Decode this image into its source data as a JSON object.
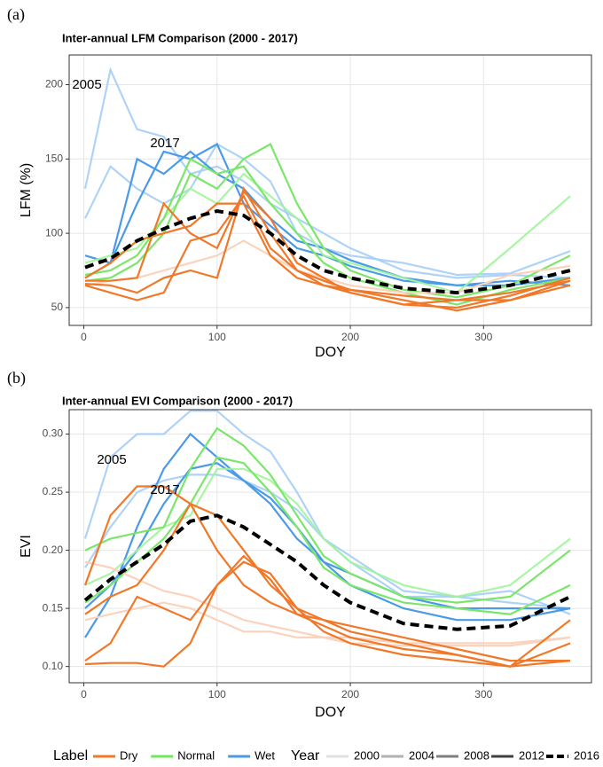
{
  "panels": [
    {
      "panel_label": "(a)",
      "chart_data": {
        "type": "line",
        "title": "Inter-annual LFM Comparison (2000 - 2017)",
        "x_label": "DOY",
        "y_label": "LFM (%)",
        "x": [
          1,
          20,
          40,
          60,
          80,
          100,
          120,
          140,
          160,
          180,
          200,
          240,
          280,
          320,
          365
        ],
        "xlim": [
          -11,
          381
        ],
        "xticks": [
          0,
          100,
          200,
          300
        ],
        "ylim": [
          38,
          220
        ],
        "yticks": [
          50,
          100,
          150,
          200
        ],
        "grid": true,
        "annotations": [
          "2005",
          "2017"
        ],
        "series": [
          {
            "color": "#a6cef5",
            "opacity": 0.9,
            "values": [
              130,
              210,
              170,
              165,
              140,
              145,
              135,
              120,
              110,
              100,
              90,
              75,
              70,
              72,
              70
            ]
          },
          {
            "color": "#a6cef5",
            "opacity": 0.9,
            "values": [
              110,
              145,
              130,
              120,
              130,
              160,
              150,
              135,
              100,
              90,
              85,
              80,
              72,
              73,
              88
            ]
          },
          {
            "color": "#4a9ae8",
            "opacity": 1,
            "values": [
              85,
              80,
              150,
              140,
              155,
              140,
              130,
              110,
              95,
              90,
              82,
              70,
              65,
              65,
              70
            ]
          },
          {
            "color": "#4a9ae8",
            "opacity": 1,
            "values": [
              70,
              80,
              120,
              155,
              150,
              160,
              120,
              105,
              90,
              85,
              78,
              68,
              65,
              68,
              65
            ]
          },
          {
            "color": "#9ef59a",
            "opacity": 0.9,
            "values": [
              80,
              85,
              90,
              110,
              130,
              120,
              140,
              125,
              110,
              85,
              80,
              70,
              60,
              90,
              125
            ]
          },
          {
            "color": "#7ae66a",
            "opacity": 1,
            "values": [
              68,
              70,
              80,
              100,
              140,
              130,
              150,
              160,
              120,
              90,
              75,
              62,
              57,
              65,
              85
            ]
          },
          {
            "color": "#7ae66a",
            "opacity": 1,
            "values": [
              72,
              75,
              85,
              110,
              150,
              140,
              145,
              120,
              100,
              80,
              70,
              60,
              52,
              62,
              70
            ]
          },
          {
            "color": "#fbd3bd",
            "opacity": 1,
            "values": [
              65,
              68,
              70,
              75,
              80,
              85,
              95,
              85,
              75,
              70,
              65,
              60,
              60,
              72,
              78
            ]
          },
          {
            "color": "#f07828",
            "opacity": 1,
            "values": [
              68,
              68,
              70,
              120,
              100,
              90,
              128,
              110,
              80,
              70,
              60,
              52,
              50,
              58,
              70
            ]
          },
          {
            "color": "#f07828",
            "opacity": 1,
            "values": [
              65,
              60,
              55,
              60,
              95,
              100,
              125,
              90,
              75,
              65,
              62,
              55,
              48,
              55,
              68
            ]
          },
          {
            "color": "#f07828",
            "opacity": 1,
            "values": [
              70,
              80,
              95,
              100,
              105,
              120,
              120,
              85,
              70,
              65,
              60,
              52,
              55,
              55,
              65
            ]
          },
          {
            "color": "#f07828",
            "opacity": 1,
            "values": [
              66,
              65,
              60,
              70,
              75,
              70,
              130,
              100,
              75,
              68,
              62,
              58,
              55,
              60,
              68
            ]
          },
          {
            "color": "#000000",
            "opacity": 1,
            "dashed": true,
            "values": [
              77,
              83,
              95,
              103,
              110,
              115,
              112,
              100,
              85,
              75,
              70,
              63,
              60,
              65,
              75
            ]
          }
        ]
      }
    },
    {
      "panel_label": "(b)",
      "chart_data": {
        "type": "line",
        "title": "Inter-annual EVI Comparison (2000 - 2017)",
        "x_label": "DOY",
        "y_label": "EVI",
        "x": [
          1,
          20,
          40,
          60,
          80,
          100,
          120,
          140,
          160,
          180,
          200,
          240,
          280,
          320,
          365
        ],
        "xlim": [
          -11,
          381
        ],
        "xticks": [
          0,
          100,
          200,
          300
        ],
        "ylim": [
          0.086,
          0.321
        ],
        "yticks": [
          {
            "value": 0.1,
            "label": "0.10"
          },
          0.15,
          {
            "value": 0.2,
            "label": "0.20"
          },
          0.25,
          {
            "value": 0.3,
            "label": "0.30"
          }
        ],
        "grid": true,
        "annotations": [
          "2005",
          "2017"
        ],
        "series": [
          {
            "color": "#a6cef5",
            "opacity": 0.9,
            "values": [
              0.21,
              0.28,
              0.3,
              0.3,
              0.32,
              0.32,
              0.3,
              0.285,
              0.25,
              0.21,
              0.19,
              0.16,
              0.16,
              0.155,
              0.15
            ]
          },
          {
            "color": "#a6cef5",
            "opacity": 0.9,
            "values": [
              0.185,
              0.22,
              0.25,
              0.26,
              0.265,
              0.265,
              0.26,
              0.25,
              0.235,
              0.21,
              0.195,
              0.165,
              0.16,
              0.165,
              0.145
            ]
          },
          {
            "color": "#4a9ae8",
            "opacity": 1,
            "values": [
              0.15,
              0.17,
              0.2,
              0.24,
              0.27,
              0.275,
              0.26,
              0.24,
              0.21,
              0.19,
              0.18,
              0.16,
              0.15,
              0.15,
              0.15
            ]
          },
          {
            "color": "#4a9ae8",
            "opacity": 1,
            "values": [
              0.125,
              0.16,
              0.22,
              0.27,
              0.3,
              0.28,
              0.26,
              0.245,
              0.22,
              0.19,
              0.17,
              0.15,
              0.14,
              0.14,
              0.15
            ]
          },
          {
            "color": "#9ef59a",
            "opacity": 0.9,
            "values": [
              0.17,
              0.18,
              0.2,
              0.22,
              0.23,
              0.27,
              0.27,
              0.26,
              0.24,
              0.21,
              0.19,
              0.17,
              0.16,
              0.17,
              0.21
            ]
          },
          {
            "color": "#7ae66a",
            "opacity": 1,
            "values": [
              0.2,
              0.21,
              0.215,
              0.22,
              0.27,
              0.305,
              0.29,
              0.265,
              0.23,
              0.195,
              0.18,
              0.16,
              0.155,
              0.16,
              0.2
            ]
          },
          {
            "color": "#7ae66a",
            "opacity": 1,
            "values": [
              0.155,
              0.17,
              0.19,
              0.21,
              0.24,
              0.28,
              0.275,
              0.25,
              0.22,
              0.185,
              0.17,
              0.155,
              0.15,
              0.145,
              0.17
            ]
          },
          {
            "color": "#fbd3bd",
            "opacity": 1,
            "values": [
              0.19,
              0.185,
              0.175,
              0.165,
              0.16,
              0.15,
              0.14,
              0.135,
              0.13,
              0.125,
              0.125,
              0.12,
              0.12,
              0.12,
              0.125
            ]
          },
          {
            "color": "#fbd3bd",
            "opacity": 1,
            "values": [
              0.14,
              0.145,
              0.15,
              0.155,
              0.15,
              0.14,
              0.13,
              0.13,
              0.125,
              0.125,
              0.12,
              0.118,
              0.118,
              0.118,
              0.125
            ]
          },
          {
            "color": "#f07828",
            "opacity": 1,
            "values": [
              0.17,
              0.23,
              0.255,
              0.255,
              0.24,
              0.2,
              0.17,
              0.155,
              0.145,
              0.14,
              0.135,
              0.125,
              0.115,
              0.105,
              0.105
            ]
          },
          {
            "color": "#f07828",
            "opacity": 1,
            "values": [
              0.145,
              0.16,
              0.17,
              0.2,
              0.24,
              0.23,
              0.2,
              0.17,
              0.15,
              0.14,
              0.13,
              0.12,
              0.11,
              0.1,
              0.12
            ]
          },
          {
            "color": "#f07828",
            "opacity": 1,
            "values": [
              0.105,
              0.12,
              0.16,
              0.15,
              0.14,
              0.17,
              0.195,
              0.175,
              0.145,
              0.135,
              0.125,
              0.115,
              0.11,
              0.1,
              0.14
            ]
          },
          {
            "color": "#f07828",
            "opacity": 1,
            "values": [
              0.102,
              0.103,
              0.103,
              0.1,
              0.12,
              0.17,
              0.19,
              0.18,
              0.15,
              0.13,
              0.12,
              0.11,
              0.105,
              0.1,
              0.105
            ]
          },
          {
            "color": "#000000",
            "opacity": 1,
            "dashed": true,
            "values": [
              0.157,
              0.175,
              0.19,
              0.205,
              0.225,
              0.23,
              0.22,
              0.205,
              0.19,
              0.17,
              0.155,
              0.137,
              0.132,
              0.135,
              0.16
            ]
          }
        ]
      }
    }
  ],
  "legend": {
    "color_title": "Label",
    "color_entries": [
      {
        "label": "Dry",
        "color": "#f07828"
      },
      {
        "label": "Normal",
        "color": "#6ee85a"
      },
      {
        "label": "Wet",
        "color": "#4a9ae8"
      }
    ],
    "year_title": "Year",
    "year_entries": [
      {
        "label": "2000",
        "opacity": 0.12
      },
      {
        "label": "2004",
        "opacity": 0.3
      },
      {
        "label": "2008",
        "opacity": 0.5
      },
      {
        "label": "2012",
        "opacity": 0.75
      },
      {
        "label": "2016",
        "opacity": 1,
        "dashed": true
      }
    ]
  }
}
